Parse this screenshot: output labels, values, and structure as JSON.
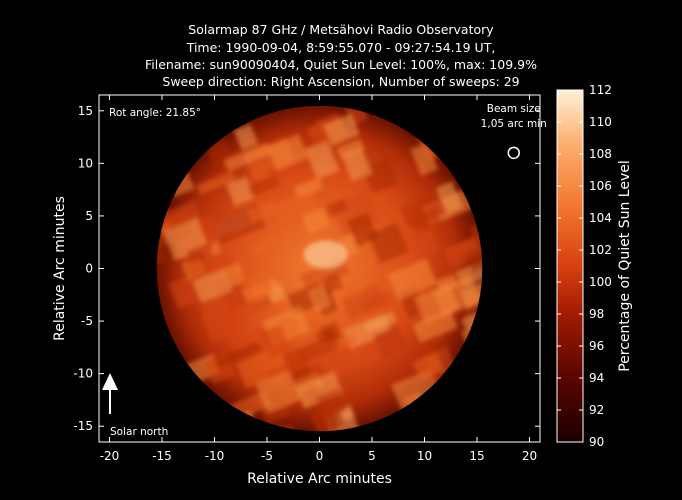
{
  "title_lines": [
    "Solarmap 87 GHz / Metsähovi Radio Observatory",
    "Time: 1990-09-04,  8:59:55.070 - 09:27:54.19 UT,",
    "Filename: sun90090404, Quiet Sun Level: 100%, max: 109.9%",
    "Sweep direction: Right Ascension, Number of sweeps: 29"
  ],
  "chart_data": {
    "type": "heatmap",
    "xlabel": "Relative Arc minutes",
    "ylabel": "Relative Arc minutes",
    "xlim": [
      -21,
      21
    ],
    "ylim": [
      -16.5,
      16.5
    ],
    "x_ticks": [
      -20,
      -15,
      -10,
      -5,
      0,
      5,
      10,
      15,
      20
    ],
    "y_ticks": [
      -15,
      -10,
      -5,
      0,
      5,
      10,
      15
    ],
    "colorbar": {
      "label": "Percentage of Quiet Sun Level",
      "min": 90,
      "max": 112,
      "ticks": [
        90,
        92,
        94,
        96,
        98,
        100,
        102,
        104,
        106,
        108,
        110,
        112
      ]
    },
    "disk": {
      "center": [
        0,
        0
      ],
      "radius_arcmin": 15.5
    },
    "max_level_percent": 109.9,
    "annotations": {
      "rot_angle": "Rot angle: 21.85°",
      "beam_size_line1": "Beam size",
      "beam_size_line2": "1,05 arc min",
      "beam_position": [
        18.5,
        11
      ],
      "solar_north": "Solar north"
    }
  },
  "colors": {
    "background": "#000000",
    "low": "#2a0000",
    "mid": "#c02808",
    "high": "#fff0d8"
  }
}
